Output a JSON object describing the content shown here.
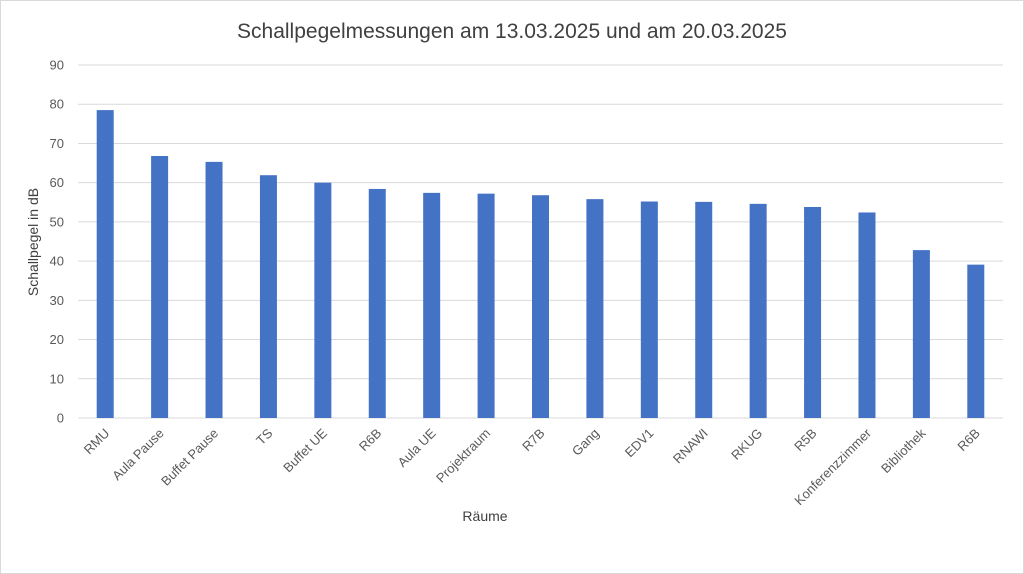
{
  "chart_data": {
    "type": "bar",
    "title": "Schallpegelmessungen am 13.03.2025 und am 20.03.2025",
    "xlabel": "Räume",
    "ylabel": "Schallpegel in dB",
    "ylim": [
      0,
      90
    ],
    "yticks": [
      0,
      10,
      20,
      30,
      40,
      50,
      60,
      70,
      80,
      90
    ],
    "grid": true,
    "legend": "none",
    "bar_color": "#4472c4",
    "categories": [
      "RMU",
      "Aula Pause",
      "Buffet Pause",
      "TS",
      "Buffet UE",
      "R6B",
      "Aula UE",
      "Projektraum",
      "R7B",
      "Gang",
      "EDV1",
      "RNAWI",
      "RKUG",
      "R5B",
      "Konferenzzimmer",
      "Bibliothek",
      "R6B"
    ],
    "values": [
      78.5,
      66.8,
      65.3,
      61.9,
      60.0,
      58.4,
      57.4,
      57.2,
      56.8,
      55.8,
      55.2,
      55.1,
      54.6,
      53.8,
      52.4,
      42.8,
      39.1
    ]
  }
}
